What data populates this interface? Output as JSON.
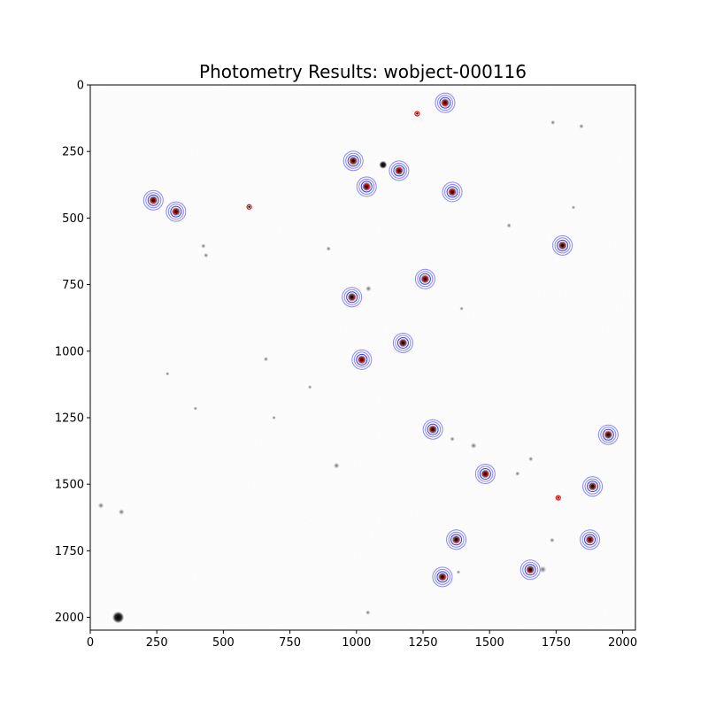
{
  "chart_data": {
    "type": "scatter",
    "title": "Photometry Results: wobject-000116",
    "xlabel": "",
    "ylabel": "",
    "xlim": [
      0,
      2048
    ],
    "ylim": [
      2048,
      0
    ],
    "x_ticks": [
      0,
      250,
      500,
      750,
      1000,
      1250,
      1500,
      1750,
      2000
    ],
    "y_ticks": [
      0,
      250,
      500,
      750,
      1000,
      1250,
      1500,
      1750,
      2000
    ],
    "grid": false,
    "background": "inverted grayscale star field",
    "colors": {
      "aperture": "#0000ff",
      "annulus": "#5555ff",
      "marker": "#ff0000",
      "star": "#000000"
    },
    "series": [
      {
        "marker": "aperture-and-annulus",
        "points": [
          {
            "x": 1333,
            "y": 67
          },
          {
            "x": 988,
            "y": 285
          },
          {
            "x": 1160,
            "y": 322
          },
          {
            "x": 1038,
            "y": 382
          },
          {
            "x": 1360,
            "y": 402
          },
          {
            "x": 237,
            "y": 433
          },
          {
            "x": 322,
            "y": 476
          },
          {
            "x": 1774,
            "y": 603
          },
          {
            "x": 1258,
            "y": 729
          },
          {
            "x": 983,
            "y": 797
          },
          {
            "x": 1175,
            "y": 969
          },
          {
            "x": 1020,
            "y": 1032
          },
          {
            "x": 1287,
            "y": 1294
          },
          {
            "x": 1946,
            "y": 1314
          },
          {
            "x": 1484,
            "y": 1461
          },
          {
            "x": 1887,
            "y": 1508
          },
          {
            "x": 1375,
            "y": 1708
          },
          {
            "x": 1877,
            "y": 1708
          },
          {
            "x": 1653,
            "y": 1821
          },
          {
            "x": 1323,
            "y": 1848
          }
        ]
      },
      {
        "marker": "red-circle-only",
        "points": [
          {
            "x": 1228,
            "y": 108
          },
          {
            "x": 597,
            "y": 458
          },
          {
            "x": 1758,
            "y": 1551
          }
        ]
      }
    ],
    "background_features": [
      {
        "x": 105,
        "y": 2000,
        "size": 3
      },
      {
        "x": 40,
        "y": 1580,
        "size": 1.5
      },
      {
        "x": 117,
        "y": 1604,
        "size": 1.5
      },
      {
        "x": 1100,
        "y": 300,
        "size": 2
      },
      {
        "x": 1440,
        "y": 1355,
        "size": 1.5
      },
      {
        "x": 925,
        "y": 1430,
        "size": 1.5
      },
      {
        "x": 1045,
        "y": 765,
        "size": 1.5
      },
      {
        "x": 660,
        "y": 1030,
        "size": 1.2
      },
      {
        "x": 1735,
        "y": 1710,
        "size": 1.2
      },
      {
        "x": 1700,
        "y": 1820,
        "size": 1.8
      },
      {
        "x": 1845,
        "y": 155,
        "size": 1.2
      },
      {
        "x": 1738,
        "y": 141,
        "size": 1.2
      },
      {
        "x": 425,
        "y": 605,
        "size": 1.2
      },
      {
        "x": 435,
        "y": 640,
        "size": 1.2
      },
      {
        "x": 1605,
        "y": 1460,
        "size": 1.2
      },
      {
        "x": 1043,
        "y": 1982,
        "size": 1.2
      },
      {
        "x": 1655,
        "y": 1405,
        "size": 1.2
      },
      {
        "x": 1573,
        "y": 528,
        "size": 1.2
      },
      {
        "x": 1360,
        "y": 1330,
        "size": 1.2
      },
      {
        "x": 895,
        "y": 615,
        "size": 1.2
      },
      {
        "x": 290,
        "y": 1085,
        "size": 1
      },
      {
        "x": 395,
        "y": 1215,
        "size": 1
      },
      {
        "x": 690,
        "y": 1250,
        "size": 1
      },
      {
        "x": 1815,
        "y": 460,
        "size": 1
      },
      {
        "x": 1383,
        "y": 1830,
        "size": 1
      },
      {
        "x": 825,
        "y": 1135,
        "size": 1
      },
      {
        "x": 1395,
        "y": 840,
        "size": 1
      }
    ]
  }
}
